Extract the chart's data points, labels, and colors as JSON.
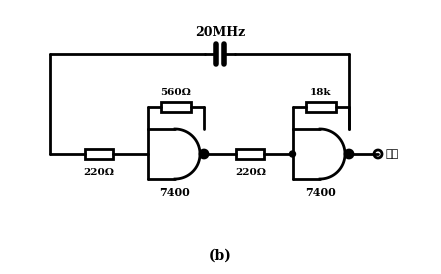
{
  "bg_color": "#ffffff",
  "line_color": "#000000",
  "line_width": 2.0,
  "title": "(b)",
  "title_fontsize": 11,
  "freq_label": "20MHz",
  "r1_label": "560Ω",
  "r2_label": "220Ω",
  "r3_label": "220Ω",
  "r4_label": "18k",
  "ic1_label": "7400",
  "ic2_label": "7400",
  "output_label": "输出"
}
